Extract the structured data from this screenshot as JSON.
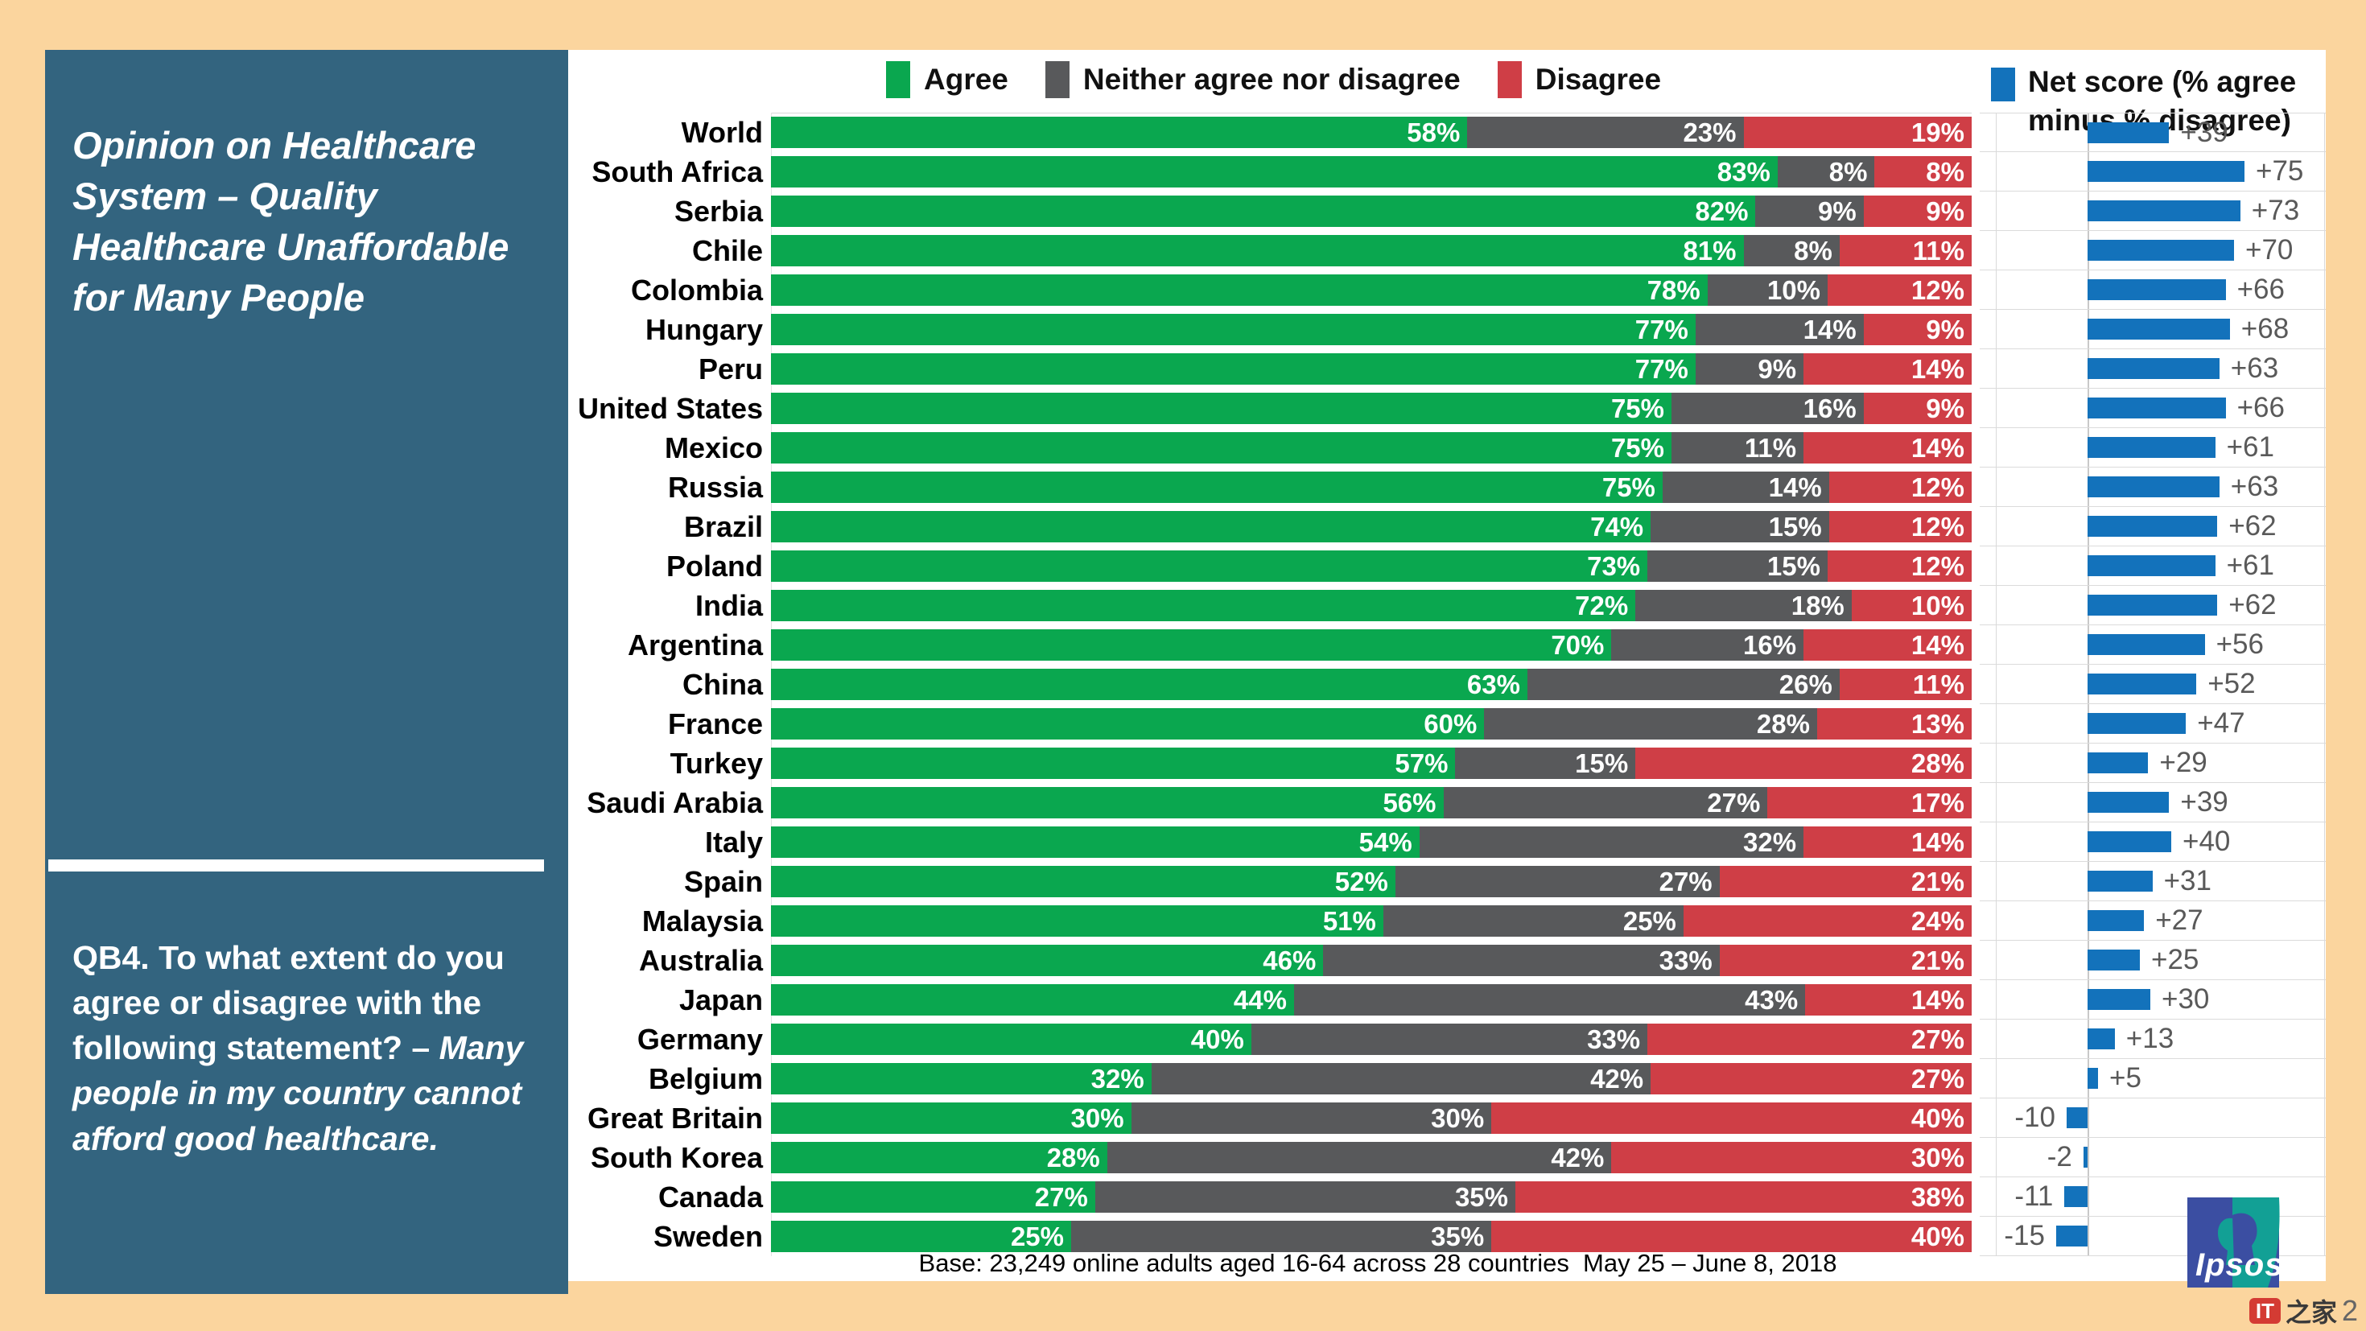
{
  "sidebar": {
    "title": "Opinion on Healthcare System – Quality Healthcare Unaffordable for Many People",
    "question_prefix": "QB4. To what extent do you agree or disagree with the following statement? – ",
    "question_statement": "Many people in my country cannot afford good healthcare."
  },
  "footer": {
    "base_text": "Base: 23,249 online adults aged 16-64 across 28 countries  May 25 – June 8, 2018"
  },
  "logo": {
    "text": "Ipsos"
  },
  "watermark": {
    "badge": "IT",
    "text": "之家",
    "suffix": "2"
  },
  "colors": {
    "agree": "#0AA74F",
    "neither": "#58595B",
    "disagree": "#CF3E46",
    "net": "#1372BB",
    "panel": "#33647F",
    "page_background": "#FBD59E",
    "gridline": "#D9D9D9",
    "net_label": "#595959"
  },
  "chart_data": {
    "type": "bar",
    "orientation": "horizontal",
    "stacked": true,
    "unit": "%",
    "title": "Opinion on Healthcare System – Quality Healthcare Unaffordable for Many People",
    "legend_position": "top",
    "categories": [
      "World",
      "South Africa",
      "Serbia",
      "Chile",
      "Colombia",
      "Hungary",
      "Peru",
      "United States",
      "Mexico",
      "Russia",
      "Brazil",
      "Poland",
      "India",
      "Argentina",
      "China",
      "France",
      "Turkey",
      "Saudi Arabia",
      "Italy",
      "Spain",
      "Malaysia",
      "Australia",
      "Japan",
      "Germany",
      "Belgium",
      "Great Britain",
      "South Korea",
      "Canada",
      "Sweden"
    ],
    "series": [
      {
        "name": "Agree",
        "color": "#0AA74F",
        "values": [
          58,
          83,
          82,
          81,
          78,
          77,
          77,
          75,
          75,
          75,
          74,
          73,
          72,
          70,
          63,
          60,
          57,
          56,
          54,
          52,
          51,
          46,
          44,
          40,
          32,
          30,
          28,
          27,
          25
        ]
      },
      {
        "name": "Neither agree nor disagree",
        "color": "#58595B",
        "values": [
          23,
          8,
          9,
          8,
          10,
          14,
          9,
          16,
          11,
          14,
          15,
          15,
          18,
          16,
          26,
          28,
          15,
          27,
          32,
          27,
          25,
          33,
          43,
          33,
          42,
          30,
          42,
          35,
          35
        ]
      },
      {
        "name": "Disagree",
        "color": "#CF3E46",
        "values": [
          19,
          8,
          9,
          11,
          12,
          9,
          14,
          9,
          14,
          12,
          12,
          12,
          10,
          14,
          11,
          13,
          28,
          17,
          14,
          21,
          24,
          21,
          14,
          27,
          27,
          40,
          30,
          38,
          40
        ]
      }
    ],
    "net_score": {
      "label": "Net score (% agree minus % disagree)",
      "color": "#1372BB",
      "values": [
        39,
        75,
        73,
        70,
        66,
        68,
        63,
        66,
        61,
        63,
        62,
        61,
        62,
        56,
        52,
        47,
        29,
        39,
        40,
        31,
        27,
        25,
        30,
        13,
        5,
        -10,
        -2,
        -11,
        -15
      ]
    }
  }
}
